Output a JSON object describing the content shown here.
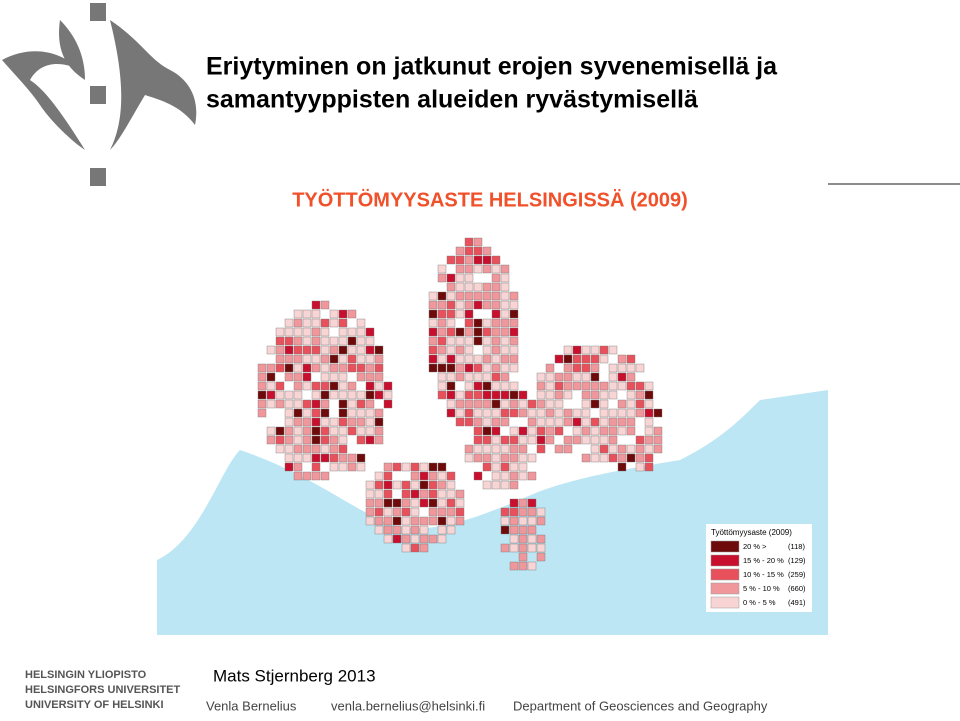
{
  "slide": {
    "title_lines": [
      "Eriytyminen on jatkunut erojen syvenemisellä ja",
      "samantyyppisten alueiden ryvästymisellä"
    ]
  },
  "map": {
    "title": "TYÖTTÖMYYSASTE HELSINGISSÄ (2009)",
    "legend": {
      "title": "Työttömyysaste (2009)",
      "items": [
        {
          "label": "20 % >",
          "count": "(118)",
          "color": "#6e0a0a"
        },
        {
          "label": "15 % - 20 %",
          "count": "(129)",
          "color": "#c8102e"
        },
        {
          "label": "10 % - 15 %",
          "count": "(259)",
          "color": "#e8505b"
        },
        {
          "label": "5 % - 10 %",
          "count": "(660)",
          "color": "#f0979c"
        },
        {
          "label": "0 % - 5 %",
          "count": "(491)",
          "color": "#f8d4d4"
        }
      ]
    }
  },
  "credit": "Mats Stjernberg 2013",
  "logo": [
    "HELSINGIN YLIOPISTO",
    "HELSINGFORS UNIVERSITET",
    "UNIVERSITY OF HELSINKI"
  ],
  "footer": [
    "Venla Bernelius",
    "venla.bernelius@helsinki.fi",
    "Department of Geosciences and Geography"
  ]
}
